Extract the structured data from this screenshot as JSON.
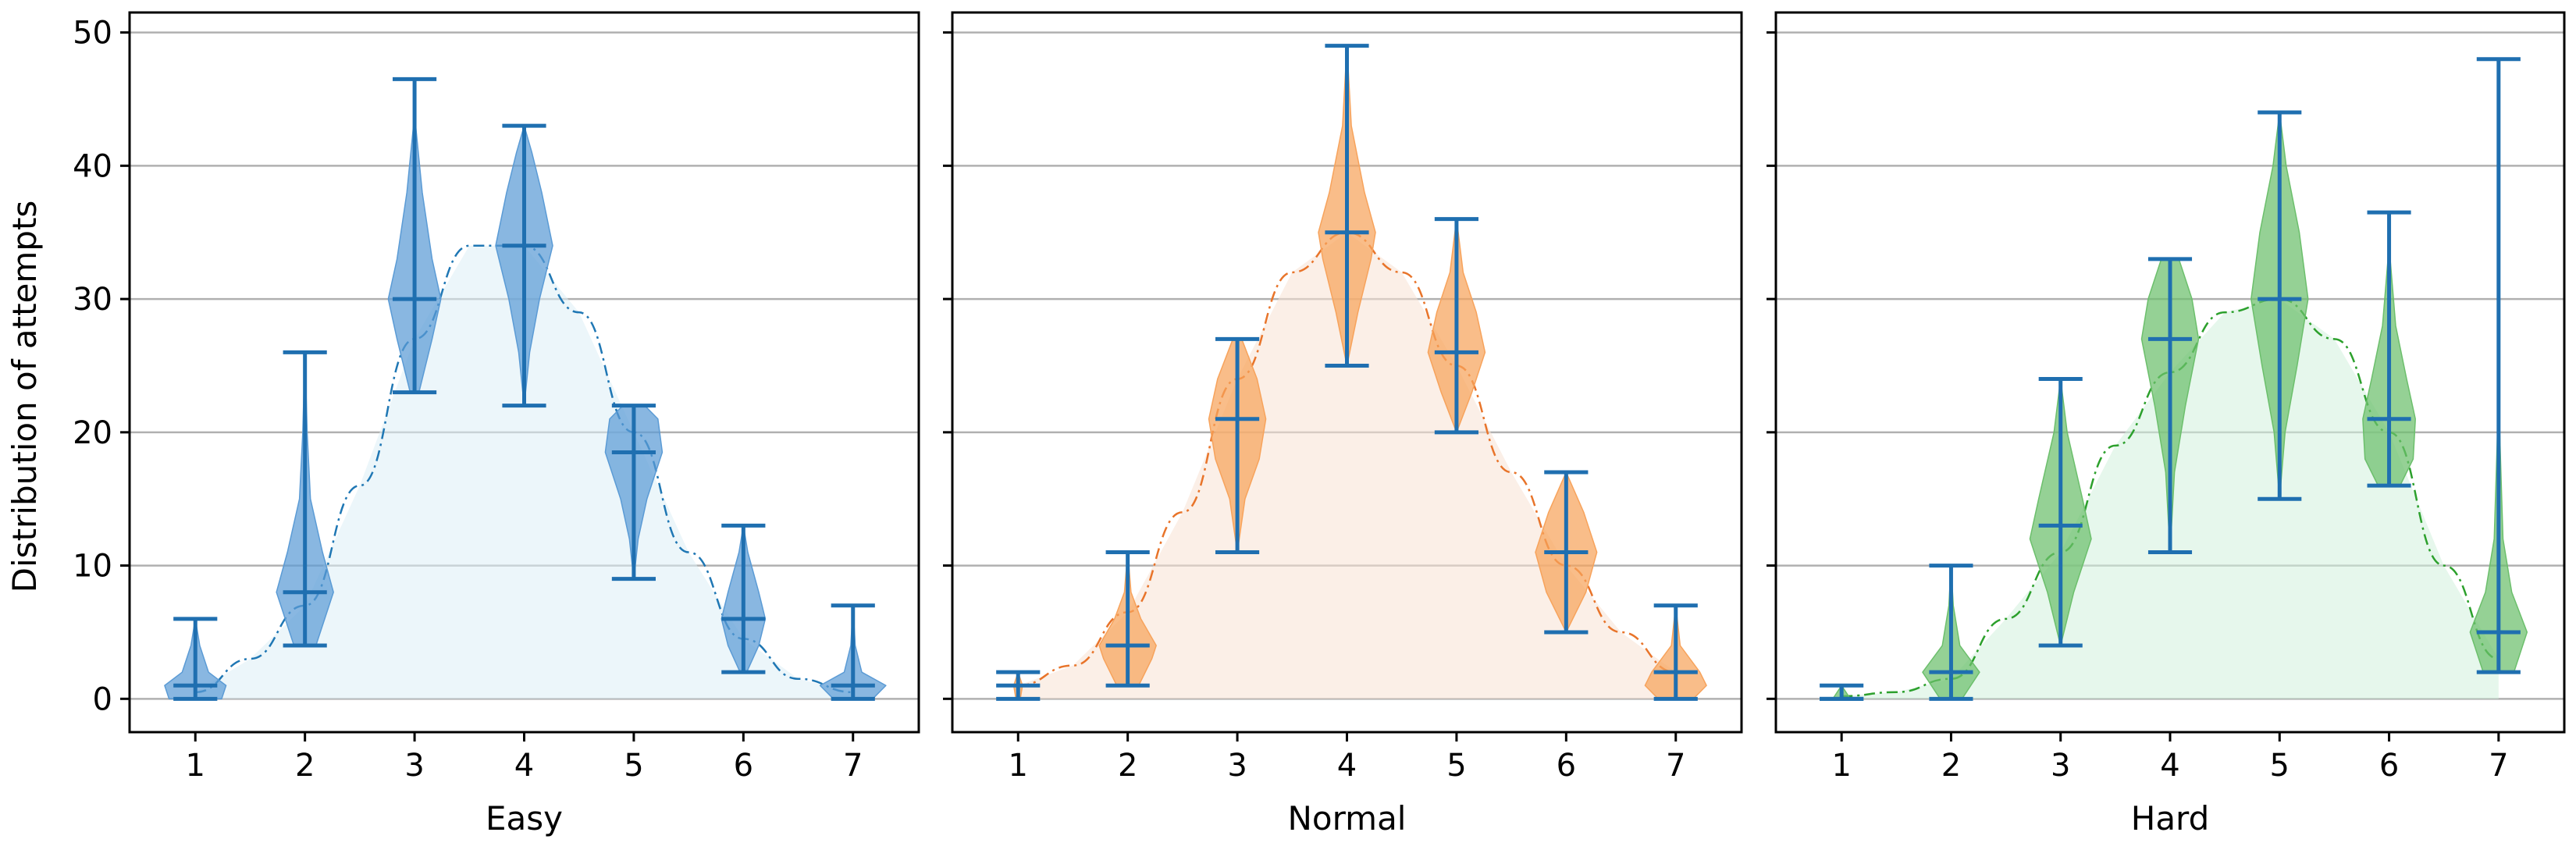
{
  "chart_data": {
    "type": "violin",
    "ylabel": "Distribution of attempts",
    "ylim": [
      -2.5,
      51.5
    ],
    "yticks": [
      0,
      10,
      20,
      30,
      40,
      50
    ],
    "x": [
      1,
      2,
      3,
      4,
      5,
      6,
      7
    ],
    "grid": "horizontal",
    "shared_y": true,
    "panels": [
      {
        "xlabel": "Easy",
        "color": "#5B9BD5",
        "curve_fill": "#DCEFF6",
        "curve_line": "#1F77B4",
        "violins": [
          {
            "x": 1,
            "min": 0,
            "max": 6,
            "median": 1,
            "spread": [
              0,
              1,
              2,
              4,
              6
            ],
            "widths": [
              0.24,
              0.28,
              0.12,
              0.04,
              0.0
            ]
          },
          {
            "x": 2,
            "min": 4,
            "max": 26,
            "median": 8,
            "spread": [
              4,
              8,
              11,
              15,
              20,
              26
            ],
            "widths": [
              0.1,
              0.26,
              0.16,
              0.05,
              0.02,
              0.0
            ]
          },
          {
            "x": 3,
            "min": 23,
            "max": 46.5,
            "median": 30,
            "spread": [
              23,
              27,
              30,
              33,
              38,
              43,
              46.5
            ],
            "widths": [
              0.04,
              0.16,
              0.24,
              0.16,
              0.07,
              0.01,
              0.0
            ]
          },
          {
            "x": 4,
            "min": 22,
            "max": 43,
            "median": 34,
            "spread": [
              22,
              26,
              30,
              34,
              38,
              41,
              43
            ],
            "widths": [
              0.0,
              0.05,
              0.14,
              0.26,
              0.16,
              0.07,
              0.0
            ]
          },
          {
            "x": 5,
            "min": 9,
            "max": 22,
            "median": 18.5,
            "spread": [
              9,
              12,
              15,
              18.5,
              21,
              22
            ],
            "widths": [
              0.0,
              0.04,
              0.12,
              0.26,
              0.22,
              0.1
            ]
          },
          {
            "x": 6,
            "min": 2,
            "max": 13,
            "median": 6,
            "spread": [
              2,
              4,
              6,
              8,
              11,
              13
            ],
            "widths": [
              0.03,
              0.14,
              0.2,
              0.14,
              0.04,
              0.0
            ]
          },
          {
            "x": 7,
            "min": 0,
            "max": 7,
            "median": 1,
            "spread": [
              0,
              1,
              2,
              4,
              7
            ],
            "widths": [
              0.18,
              0.3,
              0.08,
              0.02,
              0.0
            ]
          }
        ],
        "curve": [
          [
            1,
            0.5
          ],
          [
            1.5,
            3
          ],
          [
            2,
            7
          ],
          [
            2.5,
            16
          ],
          [
            3,
            27
          ],
          [
            3.5,
            34
          ],
          [
            4,
            34
          ],
          [
            4.5,
            29
          ],
          [
            5,
            20
          ],
          [
            5.5,
            11
          ],
          [
            6,
            4.5
          ],
          [
            6.5,
            1.5
          ],
          [
            7,
            0.5
          ]
        ]
      },
      {
        "xlabel": "Normal",
        "color": "#F7A35C",
        "curve_fill": "#F7E1D3",
        "curve_line": "#E8742A",
        "violins": [
          {
            "x": 1,
            "min": 0,
            "max": 2,
            "median": 1,
            "spread": [
              0,
              1,
              2
            ],
            "widths": [
              0.02,
              0.04,
              0.0
            ]
          },
          {
            "x": 2,
            "min": 1,
            "max": 11,
            "median": 4,
            "spread": [
              1,
              3,
              4,
              6,
              8,
              11
            ],
            "widths": [
              0.1,
              0.22,
              0.26,
              0.12,
              0.03,
              0.0
            ]
          },
          {
            "x": 3,
            "min": 11,
            "max": 27,
            "median": 21,
            "spread": [
              11,
              15,
              18,
              21,
              24,
              27
            ],
            "widths": [
              0.0,
              0.07,
              0.2,
              0.26,
              0.18,
              0.04
            ]
          },
          {
            "x": 4,
            "min": 25,
            "max": 49,
            "median": 35,
            "spread": [
              25,
              29,
              33,
              35,
              38,
              43,
              49
            ],
            "widths": [
              0.0,
              0.1,
              0.22,
              0.26,
              0.16,
              0.04,
              0.0
            ]
          },
          {
            "x": 5,
            "min": 20,
            "max": 36,
            "median": 26,
            "spread": [
              20,
              23,
              26,
              29,
              32,
              36
            ],
            "widths": [
              0.0,
              0.14,
              0.26,
              0.18,
              0.06,
              0.0
            ]
          },
          {
            "x": 6,
            "min": 5,
            "max": 17,
            "median": 11,
            "spread": [
              5,
              8,
              11,
              14,
              17
            ],
            "widths": [
              0.0,
              0.18,
              0.28,
              0.16,
              0.0
            ]
          },
          {
            "x": 7,
            "min": 0,
            "max": 7,
            "median": 2,
            "spread": [
              0,
              1,
              2,
              4,
              7
            ],
            "widths": [
              0.16,
              0.28,
              0.22,
              0.04,
              0.0
            ]
          }
        ],
        "curve": [
          [
            1,
            1
          ],
          [
            1.5,
            2.5
          ],
          [
            2,
            6.5
          ],
          [
            2.5,
            14
          ],
          [
            3,
            24
          ],
          [
            3.5,
            32
          ],
          [
            4,
            35
          ],
          [
            4.5,
            32
          ],
          [
            5,
            25
          ],
          [
            5.5,
            17
          ],
          [
            6,
            10
          ],
          [
            6.5,
            5
          ],
          [
            7,
            2
          ]
        ]
      },
      {
        "xlabel": "Hard",
        "color": "#6CBF6C",
        "curve_fill": "#D2F0DC",
        "curve_line": "#2CA02C",
        "violins": [
          {
            "x": 1,
            "min": 0,
            "max": 1,
            "median": 0,
            "spread": [
              0,
              0.5,
              1
            ],
            "widths": [
              0.08,
              0.04,
              0.0
            ]
          },
          {
            "x": 2,
            "min": 0,
            "max": 10,
            "median": 2,
            "spread": [
              0,
              2,
              4,
              7,
              10
            ],
            "widths": [
              0.1,
              0.26,
              0.08,
              0.02,
              0.0
            ]
          },
          {
            "x": 3,
            "min": 4,
            "max": 24,
            "median": 13,
            "spread": [
              4,
              8,
              12,
              15,
              20,
              24
            ],
            "widths": [
              0.0,
              0.12,
              0.28,
              0.2,
              0.06,
              0.0
            ]
          },
          {
            "x": 4,
            "min": 11,
            "max": 33,
            "median": 27,
            "spread": [
              11,
              17,
              22,
              27,
              30,
              33
            ],
            "widths": [
              0.0,
              0.04,
              0.14,
              0.26,
              0.2,
              0.08
            ]
          },
          {
            "x": 5,
            "min": 15,
            "max": 44,
            "median": 30,
            "spread": [
              15,
              20,
              25,
              30,
              35,
              40,
              44
            ],
            "widths": [
              0.0,
              0.05,
              0.16,
              0.26,
              0.18,
              0.06,
              0.0
            ]
          },
          {
            "x": 6,
            "min": 16,
            "max": 36.5,
            "median": 21,
            "spread": [
              16,
              18,
              21,
              24,
              28,
              33,
              36.5
            ],
            "widths": [
              0.1,
              0.22,
              0.24,
              0.16,
              0.06,
              0.01,
              0.0
            ]
          },
          {
            "x": 7,
            "min": 2,
            "max": 48,
            "median": 5,
            "spread": [
              2,
              5,
              8,
              12,
              20,
              30,
              48
            ],
            "widths": [
              0.14,
              0.26,
              0.12,
              0.04,
              0.01,
              0.0,
              0.0
            ]
          }
        ],
        "curve": [
          [
            1,
            0.2
          ],
          [
            1.5,
            0.5
          ],
          [
            2,
            1.5
          ],
          [
            2.5,
            6
          ],
          [
            3,
            11
          ],
          [
            3.5,
            19
          ],
          [
            4,
            24.5
          ],
          [
            4.5,
            29
          ],
          [
            5,
            30
          ],
          [
            5.5,
            27
          ],
          [
            6,
            20
          ],
          [
            6.5,
            10
          ],
          [
            7,
            3
          ]
        ]
      }
    ]
  }
}
